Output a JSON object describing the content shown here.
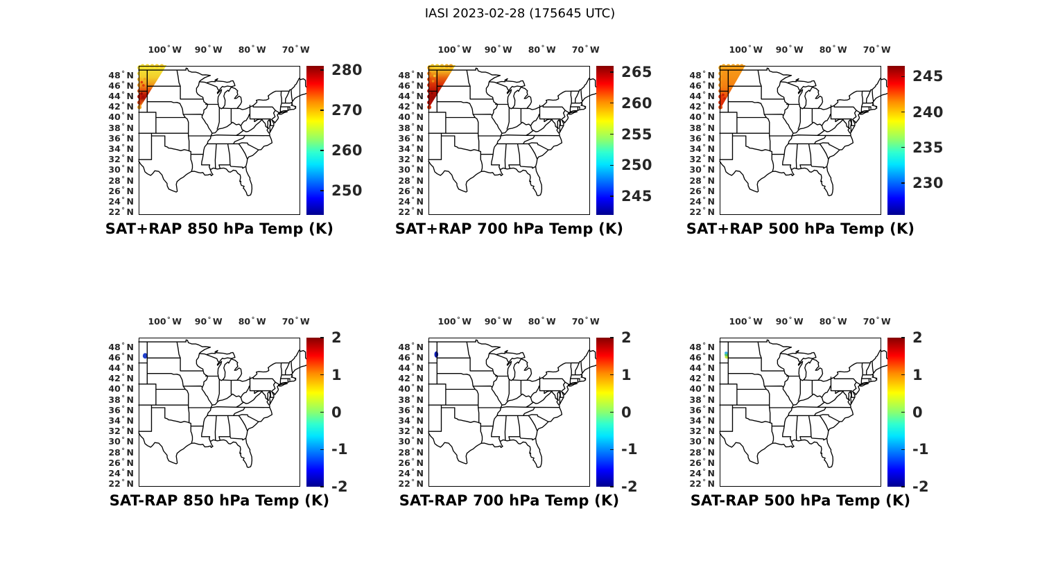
{
  "figure_title": "IASI 2023-02-28 (175645 UTC)",
  "axes": {
    "lon_labels": [
      "100",
      "90",
      "80",
      "70"
    ],
    "lon_unit": "W",
    "lat_labels": [
      "48",
      "46",
      "44",
      "42",
      "40",
      "38",
      "36",
      "34",
      "32",
      "30",
      "28",
      "26",
      "24",
      "22"
    ],
    "lat_unit": "N",
    "degree_symbol": "°"
  },
  "panels": [
    {
      "id": "sat-plus-rap-850",
      "title": "SAT+RAP 850 hPa Temp (K)",
      "colorbar": {
        "min": 244,
        "max": 281,
        "ticks": [
          280,
          270,
          260,
          250
        ]
      },
      "overlay": {
        "kind": "swath",
        "top_lon": -99.6,
        "tip_lat": 41.5,
        "gradient": [
          {
            "o": 0,
            "c": "#f2e636"
          },
          {
            "o": 0.12,
            "c": "#f3e034"
          },
          {
            "o": 0.28,
            "c": "#f3cc2a"
          },
          {
            "o": 0.42,
            "c": "#f0a01c"
          },
          {
            "o": 0.55,
            "c": "#e85a0e"
          },
          {
            "o": 0.66,
            "c": "#bb1806"
          },
          {
            "o": 0.75,
            "c": "#a81004"
          },
          {
            "o": 0.84,
            "c": "#e06010"
          },
          {
            "o": 1,
            "c": "#f2b824"
          }
        ],
        "footprints": [
          {
            "lon": -105.82,
            "lat": 49.45,
            "c": "#f2dc30"
          },
          {
            "lon": -105.82,
            "lat": 48.35,
            "c": "#f3d22c"
          },
          {
            "lon": -105.82,
            "lat": 47.25,
            "c": "#f2b422"
          },
          {
            "lon": -105.82,
            "lat": 46.15,
            "c": "#ef9218"
          },
          {
            "lon": -105.82,
            "lat": 45.05,
            "c": "#e4580e"
          },
          {
            "lon": -105.82,
            "lat": 43.95,
            "c": "#bf1805"
          },
          {
            "lon": -105.82,
            "lat": 42.85,
            "c": "#d23b0a"
          },
          {
            "lon": -105.82,
            "lat": 41.95,
            "c": "#eb9a1c"
          },
          {
            "lon": -105.1,
            "lat": 49.75,
            "c": "#f1dc30"
          },
          {
            "lon": -104.0,
            "lat": 49.75,
            "c": "#f2d82e"
          },
          {
            "lon": -102.9,
            "lat": 49.75,
            "c": "#f4d42c"
          },
          {
            "lon": -101.8,
            "lat": 49.75,
            "c": "#f4d02a"
          },
          {
            "lon": -100.7,
            "lat": 49.75,
            "c": "#f2ca28"
          }
        ],
        "speckles": [
          {
            "lon": -105.3,
            "lat": 46.7,
            "c": "#e03c0a"
          },
          {
            "lon": -104.9,
            "lat": 46.1,
            "c": "#dd380a"
          },
          {
            "lon": -105.35,
            "lat": 44.55,
            "c": "#8f0a03"
          },
          {
            "lon": -105.0,
            "lat": 43.9,
            "c": "#a40d04"
          },
          {
            "lon": -104.6,
            "lat": 47.3,
            "c": "#f0a01a"
          }
        ]
      }
    },
    {
      "id": "sat-plus-rap-700",
      "title": "SAT+RAP 700 hPa Temp (K)",
      "colorbar": {
        "min": 242,
        "max": 266,
        "ticks": [
          265,
          260,
          255,
          250,
          245
        ]
      },
      "overlay": {
        "kind": "swath",
        "top_lon": -99.8,
        "tip_lat": 41.7,
        "gradient": [
          {
            "o": 0,
            "c": "#f4dc32"
          },
          {
            "o": 0.14,
            "c": "#f2b01e"
          },
          {
            "o": 0.3,
            "c": "#e8600e"
          },
          {
            "o": 0.45,
            "c": "#d83006"
          },
          {
            "o": 0.6,
            "c": "#b81204"
          },
          {
            "o": 0.75,
            "c": "#9a0903"
          },
          {
            "o": 0.88,
            "c": "#ad0d04"
          },
          {
            "o": 1,
            "c": "#cc2408"
          }
        ],
        "footprints": [
          {
            "lon": -105.82,
            "lat": 49.45,
            "c": "#efae1c"
          },
          {
            "lon": -105.82,
            "lat": 48.35,
            "c": "#e87810"
          },
          {
            "lon": -105.82,
            "lat": 47.25,
            "c": "#e14a0a"
          },
          {
            "lon": -105.82,
            "lat": 46.15,
            "c": "#d42c06"
          },
          {
            "lon": -105.82,
            "lat": 45.05,
            "c": "#bc1404"
          },
          {
            "lon": -105.82,
            "lat": 43.95,
            "c": "#a30b03"
          },
          {
            "lon": -105.82,
            "lat": 42.85,
            "c": "#b51006"
          },
          {
            "lon": -105.82,
            "lat": 41.95,
            "c": "#d8360a"
          },
          {
            "lon": -105.1,
            "lat": 49.75,
            "c": "#f0c426"
          },
          {
            "lon": -104.0,
            "lat": 49.75,
            "c": "#f2cc28"
          },
          {
            "lon": -102.9,
            "lat": 49.75,
            "c": "#f0b820"
          },
          {
            "lon": -101.8,
            "lat": 49.75,
            "c": "#eeaa1a"
          },
          {
            "lon": -100.85,
            "lat": 49.75,
            "c": "#eca016"
          }
        ],
        "speckles": [
          {
            "lon": -104.95,
            "lat": 46.9,
            "c": "#ef8812"
          },
          {
            "lon": -104.6,
            "lat": 47.9,
            "c": "#f4c82a"
          },
          {
            "lon": -105.2,
            "lat": 44.6,
            "c": "#8c0703"
          }
        ]
      }
    },
    {
      "id": "sat-plus-rap-500",
      "title": "SAT+RAP 500 hPa Temp (K)",
      "colorbar": {
        "min": 225.5,
        "max": 246.5,
        "ticks": [
          245,
          240,
          235,
          230
        ]
      },
      "overlay": {
        "kind": "swath",
        "top_lon": -100.1,
        "tip_lat": 41.4,
        "gradient": [
          {
            "o": 0,
            "c": "#f8a01b"
          },
          {
            "o": 0.3,
            "c": "#f68e14"
          },
          {
            "o": 0.5,
            "c": "#f47c10"
          },
          {
            "o": 0.65,
            "c": "#ee5a0c"
          },
          {
            "o": 0.78,
            "c": "#e03008"
          },
          {
            "o": 1,
            "c": "#d82808"
          }
        ],
        "footprints": [
          {
            "lon": -105.82,
            "lat": 49.45,
            "c": "#f8a81e"
          },
          {
            "lon": -105.82,
            "lat": 48.35,
            "c": "#f79e1a"
          },
          {
            "lon": -105.82,
            "lat": 47.25,
            "c": "#f69616"
          },
          {
            "lon": -105.82,
            "lat": 46.15,
            "c": "#f48c12"
          },
          {
            "lon": -105.82,
            "lat": 45.05,
            "c": "#ee6c0e"
          },
          {
            "lon": -105.82,
            "lat": 43.95,
            "c": "#e23408"
          },
          {
            "lon": -105.82,
            "lat": 42.85,
            "c": "#dc2c08"
          },
          {
            "lon": -105.82,
            "lat": 41.95,
            "c": "#e4460c"
          },
          {
            "lon": -105.1,
            "lat": 49.75,
            "c": "#f8a81e"
          },
          {
            "lon": -104.0,
            "lat": 49.75,
            "c": "#f8a61c"
          },
          {
            "lon": -102.9,
            "lat": 49.75,
            "c": "#f7a21a"
          },
          {
            "lon": -101.85,
            "lat": 49.75,
            "c": "#f69e18"
          },
          {
            "lon": -100.95,
            "lat": 49.75,
            "c": "#f59a16"
          }
        ],
        "speckles": [
          {
            "lon": -105.2,
            "lat": 44.3,
            "c": "#c81c06"
          },
          {
            "lon": -104.9,
            "lat": 43.6,
            "c": "#cc2006"
          }
        ]
      }
    },
    {
      "id": "sat-minus-rap-850",
      "title": "SAT-RAP 850 hPa Temp (K)",
      "colorbar": {
        "min": -2,
        "max": 2,
        "ticks": [
          2,
          1,
          0,
          -1,
          -2
        ]
      },
      "overlay": {
        "kind": "spot",
        "shapes": [
          {
            "lon": -104.5,
            "lat": 46.35,
            "rx": 3.5,
            "ry": 4.0,
            "c": "#2140cc"
          }
        ]
      }
    },
    {
      "id": "sat-minus-rap-700",
      "title": "SAT-RAP 700 hPa Temp (K)",
      "colorbar": {
        "min": -2,
        "max": 2,
        "ticks": [
          2,
          1,
          0,
          -1,
          -2
        ]
      },
      "overlay": {
        "kind": "spot",
        "shapes": [
          {
            "lon": -104.2,
            "lat": 46.6,
            "rx": 2.8,
            "ry": 4.6,
            "c": "#0d1db5"
          }
        ]
      }
    },
    {
      "id": "sat-minus-rap-500",
      "title": "SAT-RAP 500 hPa Temp (K)",
      "colorbar": {
        "min": -2,
        "max": 2,
        "ticks": [
          2,
          1,
          0,
          -1,
          -2
        ]
      },
      "overlay": {
        "kind": "spot",
        "shapes": [
          {
            "lon": -104.35,
            "lat": 46.15,
            "rx": 3.0,
            "ry": 2.6,
            "c": "#c2e63c"
          },
          {
            "lon": -104.45,
            "lat": 46.55,
            "rx": 2.8,
            "ry": 2.2,
            "c": "#52c860"
          },
          {
            "lon": -104.5,
            "lat": 46.9,
            "rx": 2.3,
            "ry": 1.9,
            "c": "#38b0e0"
          }
        ]
      }
    }
  ],
  "chart_data": {
    "type": "heatmap",
    "title": "IASI 2023-02-28 (175645 UTC)",
    "layout": "2 rows x 3 columns of geographic map panels (central/eastern USA) with jet colorbars",
    "map_extent": {
      "lon_deg_west": [
        106,
        69
      ],
      "lat_deg_north": [
        21.5,
        49.8
      ]
    },
    "lon_ticks_deg_w": [
      100,
      90,
      80,
      70
    ],
    "lat_ticks_deg_n": [
      48,
      46,
      44,
      42,
      40,
      38,
      36,
      34,
      32,
      30,
      28,
      26,
      24,
      22
    ],
    "colormap": "jet (dark blue low to dark red high)",
    "panels": [
      {
        "title": "SAT+RAP 850 hPa Temp (K)",
        "units": "K",
        "colorbar_ticks": [
          250,
          260,
          270,
          280
        ],
        "colorbar_range": [
          244,
          281
        ],
        "data": "IASI swath wedge in NW corner (106W to ~99.6W at top, tapering to 106W at ~41.5N); values ~270-272 K (yellow) in north, ~272-275 K (orange/red) mid, ~278-280 K (dark red) near 44N, ~272 K at southern tip"
      },
      {
        "title": "SAT+RAP 700 hPa Temp (K)",
        "units": "K",
        "colorbar_ticks": [
          245,
          250,
          255,
          260,
          265
        ],
        "colorbar_range": [
          242,
          266
        ],
        "data": "Same swath; ~257 K (yellow) at northern edge grading to ~263-266 K (red to dark red) from 47N to 42N"
      },
      {
        "title": "SAT+RAP 500 hPa Temp (K)",
        "units": "K",
        "colorbar_ticks": [
          230,
          235,
          240,
          245
        ],
        "colorbar_range": [
          225.5,
          246.5
        ],
        "data": "Same swath; fairly uniform ~240-241 K (orange) north half, ~243-244 K (red) south of 45N"
      },
      {
        "title": "SAT-RAP 850 hPa Temp (K)",
        "units": "K",
        "colorbar_ticks": [
          -2,
          -1,
          0,
          1,
          2
        ],
        "colorbar_range": [
          -2,
          2
        ],
        "data": "Single retained spot near 104.5W, 46.4N; difference ~ -1.3 K (blue)"
      },
      {
        "title": "SAT-RAP 700 hPa Temp (K)",
        "units": "K",
        "colorbar_ticks": [
          -2,
          -1,
          0,
          1,
          2
        ],
        "colorbar_range": [
          -2,
          2
        ],
        "data": "Single spot near 104.2W, 46.6N; difference ~ -1.8 K (dark blue)"
      },
      {
        "title": "SAT-RAP 500 hPa Temp (K)",
        "units": "K",
        "colorbar_ticks": [
          -2,
          -1,
          0,
          1,
          2
        ],
        "colorbar_range": [
          -2,
          2
        ],
        "data": "Single spot near 104.4W, 46.5N; difference ~ -0.8 K (cyan) at top to ~ +0.2 K (yellow-green) at bottom"
      }
    ],
    "legend_position": "colorbar right of each panel",
    "grid": false
  }
}
